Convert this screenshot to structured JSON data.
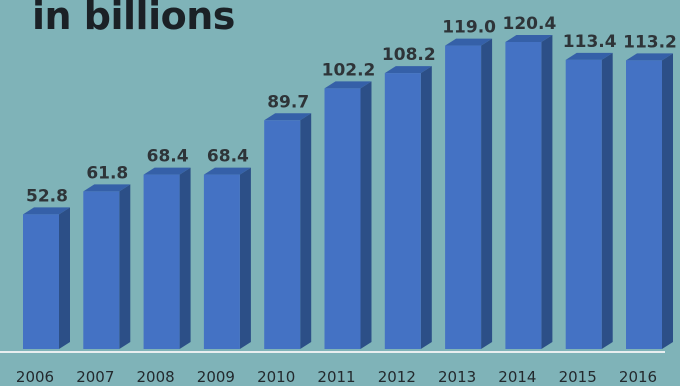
{
  "title": "in billions",
  "chart_data": {
    "type": "bar",
    "title": "in billions",
    "xlabel": "",
    "ylabel": "",
    "categories": [
      "2006",
      "2007",
      "2008",
      "2009",
      "2010",
      "2011",
      "2012",
      "2013",
      "2014",
      "2015",
      "2016"
    ],
    "values": [
      52.8,
      61.8,
      68.4,
      68.4,
      89.7,
      102.2,
      108.2,
      119.0,
      120.4,
      113.4,
      113.2
    ],
    "value_labels": [
      "52.8",
      "61.8",
      "68.4",
      "68.4",
      "89.7",
      "102.2",
      "108.2",
      "119.0",
      "120.4",
      "113.4",
      "113.2"
    ],
    "ylim": [
      0,
      120.4
    ],
    "grid": false,
    "legend": "none",
    "colors": {
      "bar_front": "#4472c4",
      "bar_side": "#2c4f87",
      "bar_top": "#3560a8",
      "baseline": "#e8eef0"
    }
  }
}
